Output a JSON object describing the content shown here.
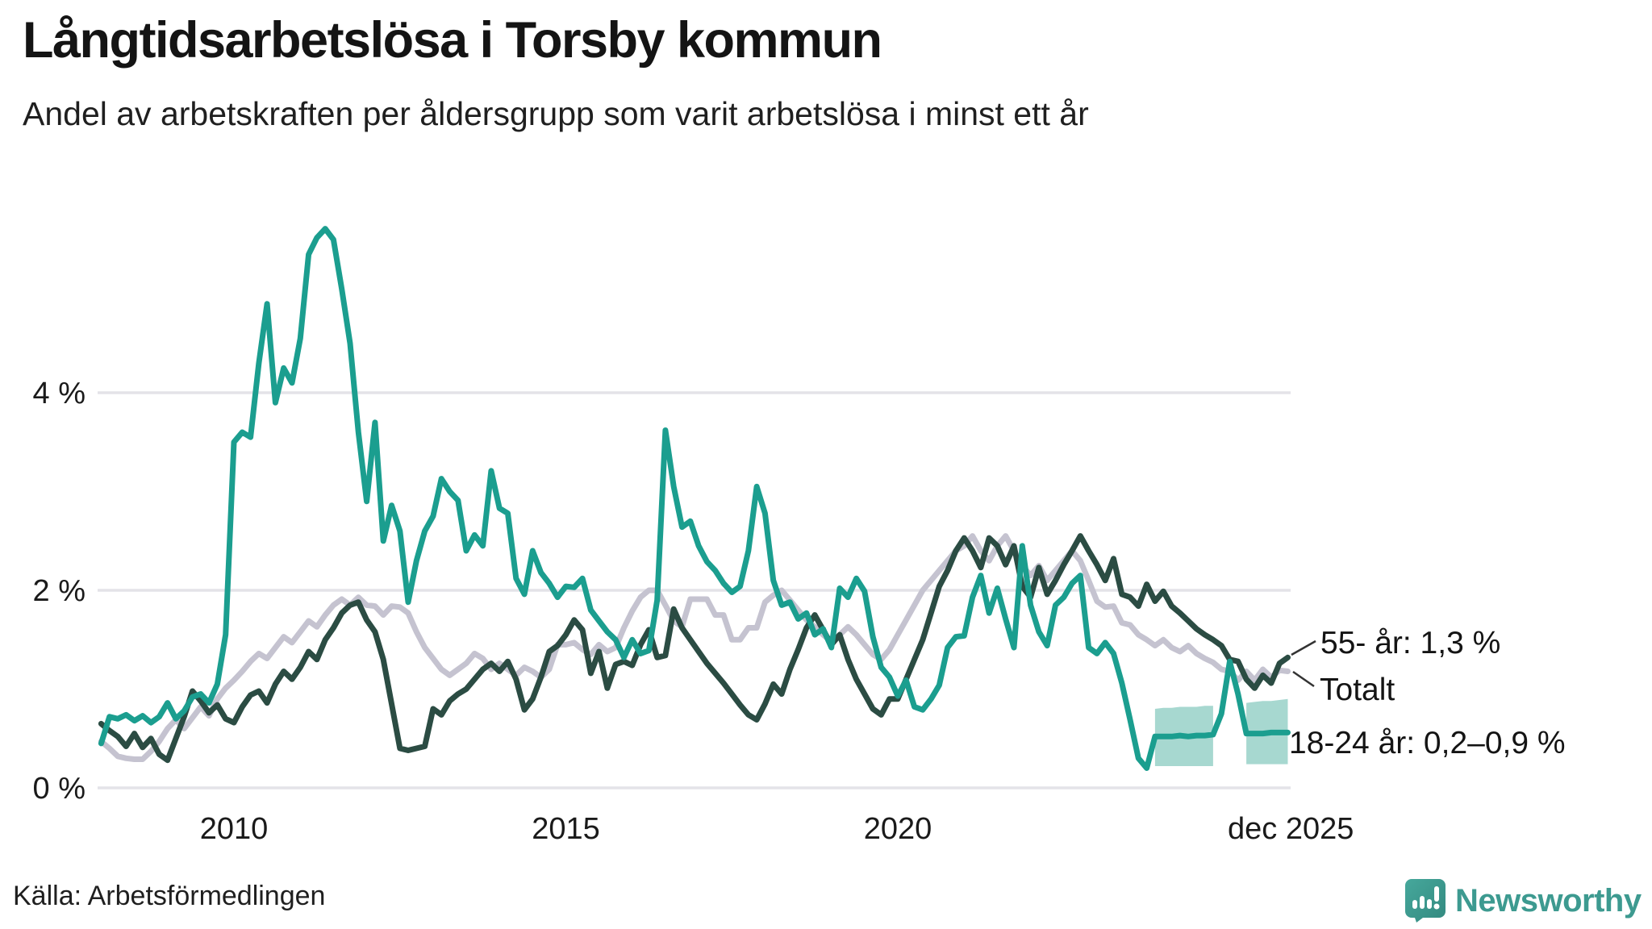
{
  "header": {
    "title": "Långtidsarbetslösa i Torsby kommun",
    "subtitle": "Andel av arbetskraften per åldersgrupp som varit arbetslösa i minst ett år"
  },
  "footer": {
    "source": "Källa: Arbetsförmedlingen",
    "brand": "Newsworthy"
  },
  "colors": {
    "youth_line": "#1b9e8f",
    "senior_line": "#2b4c43",
    "total_line": "#c5c3d0",
    "uncertainty_band": "#a7d8d0",
    "gridline": "#e4e3e8",
    "text": "#1a1a1a",
    "connector": "#333333",
    "brand_teal": "#3d9a90"
  },
  "chart_data": {
    "type": "line",
    "title": "Långtidsarbetslösa i Torsby kommun",
    "subtitle": "Andel av arbetskraften per åldersgrupp som varit arbetslösa i minst ett år",
    "xlabel": "",
    "ylabel": "",
    "x_start": 2008.0,
    "x_step": 0.125,
    "x_end": 2025.875,
    "ylim": [
      0,
      5.9
    ],
    "grid": "horizontal",
    "y_ticks": [
      {
        "label": "0 %",
        "value": 0
      },
      {
        "label": "2 %",
        "value": 2
      },
      {
        "label": "4 %",
        "value": 4
      }
    ],
    "x_ticks": [
      {
        "label": "2010",
        "year": 2010
      },
      {
        "label": "2015",
        "year": 2015
      },
      {
        "label": "2020",
        "year": 2020
      },
      {
        "label": "dec 2025",
        "year": 2025.92
      }
    ],
    "series": [
      {
        "name": "Totalt",
        "color": "#c5c3d0",
        "values": [
          0.47,
          0.4,
          0.32,
          0.3,
          0.29,
          0.29,
          0.37,
          0.47,
          0.6,
          0.69,
          0.6,
          0.71,
          0.82,
          0.73,
          0.9,
          1.01,
          1.09,
          1.18,
          1.28,
          1.36,
          1.31,
          1.42,
          1.53,
          1.47,
          1.58,
          1.69,
          1.63,
          1.75,
          1.85,
          1.91,
          1.85,
          1.93,
          1.85,
          1.84,
          1.75,
          1.84,
          1.83,
          1.77,
          1.58,
          1.42,
          1.31,
          1.2,
          1.14,
          1.2,
          1.26,
          1.36,
          1.31,
          1.2,
          1.26,
          1.2,
          1.14,
          1.22,
          1.18,
          1.12,
          1.2,
          1.45,
          1.45,
          1.47,
          1.4,
          1.35,
          1.45,
          1.38,
          1.42,
          1.62,
          1.79,
          1.93,
          2.0,
          2.0,
          1.85,
          1.69,
          1.63,
          1.91,
          1.91,
          1.91,
          1.75,
          1.75,
          1.5,
          1.5,
          1.62,
          1.62,
          1.88,
          1.95,
          2.0,
          1.9,
          1.8,
          1.7,
          1.63,
          1.55,
          1.48,
          1.55,
          1.63,
          1.55,
          1.45,
          1.35,
          1.3,
          1.4,
          1.55,
          1.7,
          1.85,
          2.0,
          2.1,
          2.2,
          2.3,
          2.4,
          2.45,
          2.55,
          2.4,
          2.3,
          2.45,
          2.55,
          2.4,
          2.25,
          2.15,
          2.25,
          2.1,
          2.2,
          2.3,
          2.4,
          2.3,
          2.1,
          1.89,
          1.83,
          1.84,
          1.67,
          1.65,
          1.55,
          1.5,
          1.44,
          1.5,
          1.42,
          1.38,
          1.44,
          1.36,
          1.31,
          1.27,
          1.2,
          1.18,
          1.09,
          1.18,
          1.09,
          1.2,
          1.12,
          1.19,
          1.18
        ]
      },
      {
        "name": "55- år",
        "color": "#2b4c43",
        "values": [
          0.65,
          0.58,
          0.52,
          0.42,
          0.55,
          0.41,
          0.5,
          0.34,
          0.28,
          0.5,
          0.72,
          0.98,
          0.88,
          0.76,
          0.84,
          0.7,
          0.66,
          0.82,
          0.94,
          0.98,
          0.86,
          1.05,
          1.18,
          1.1,
          1.22,
          1.38,
          1.3,
          1.5,
          1.62,
          1.77,
          1.85,
          1.88,
          1.7,
          1.58,
          1.3,
          0.85,
          0.4,
          0.38,
          0.4,
          0.42,
          0.8,
          0.74,
          0.88,
          0.95,
          1.0,
          1.1,
          1.2,
          1.26,
          1.18,
          1.28,
          1.1,
          0.79,
          0.9,
          1.12,
          1.38,
          1.44,
          1.55,
          1.7,
          1.6,
          1.16,
          1.38,
          1.01,
          1.25,
          1.28,
          1.24,
          1.45,
          1.6,
          1.32,
          1.34,
          1.81,
          1.62,
          1.5,
          1.38,
          1.26,
          1.16,
          1.06,
          0.95,
          0.84,
          0.74,
          0.69,
          0.85,
          1.05,
          0.95,
          1.2,
          1.4,
          1.62,
          1.75,
          1.6,
          1.45,
          1.55,
          1.3,
          1.1,
          0.95,
          0.8,
          0.74,
          0.9,
          0.9,
          1.1,
          1.3,
          1.5,
          1.77,
          2.04,
          2.2,
          2.4,
          2.53,
          2.4,
          2.23,
          2.53,
          2.45,
          2.26,
          2.45,
          2.04,
          1.93,
          2.23,
          1.96,
          2.1,
          2.26,
          2.4,
          2.55,
          2.4,
          2.26,
          2.1,
          2.32,
          1.96,
          1.93,
          1.84,
          2.06,
          1.89,
          1.99,
          1.84,
          1.77,
          1.69,
          1.61,
          1.55,
          1.5,
          1.44,
          1.3,
          1.28,
          1.1,
          1.01,
          1.14,
          1.06,
          1.26,
          1.32
        ]
      },
      {
        "name": "18-24 år",
        "color": "#1b9e8f",
        "values": [
          0.45,
          0.72,
          0.7,
          0.74,
          0.68,
          0.73,
          0.66,
          0.72,
          0.86,
          0.7,
          0.78,
          0.92,
          0.95,
          0.86,
          1.05,
          1.55,
          3.5,
          3.6,
          3.55,
          4.3,
          4.9,
          3.9,
          4.25,
          4.1,
          4.55,
          5.4,
          5.57,
          5.66,
          5.55,
          5.05,
          4.5,
          3.6,
          2.9,
          3.7,
          2.5,
          2.86,
          2.6,
          1.88,
          2.3,
          2.6,
          2.75,
          3.13,
          3.0,
          2.91,
          2.4,
          2.56,
          2.45,
          3.21,
          2.83,
          2.78,
          2.12,
          1.96,
          2.4,
          2.18,
          2.07,
          1.93,
          2.04,
          2.03,
          2.12,
          1.8,
          1.69,
          1.58,
          1.5,
          1.32,
          1.5,
          1.36,
          1.39,
          1.9,
          3.62,
          3.05,
          2.64,
          2.7,
          2.45,
          2.29,
          2.2,
          2.07,
          1.98,
          2.04,
          2.4,
          3.05,
          2.78,
          2.1,
          1.85,
          1.88,
          1.71,
          1.77,
          1.55,
          1.61,
          1.42,
          2.02,
          1.93,
          2.12,
          1.99,
          1.53,
          1.22,
          1.12,
          0.93,
          1.09,
          0.82,
          0.79,
          0.9,
          1.04,
          1.42,
          1.53,
          1.54,
          1.93,
          2.15,
          1.77,
          2.02,
          1.71,
          1.42,
          2.45,
          1.85,
          1.58,
          1.44,
          1.85,
          1.93,
          2.07,
          2.15,
          1.42,
          1.36,
          1.47,
          1.36,
          1.06,
          0.69,
          0.3,
          0.2,
          0.52,
          0.52,
          0.52,
          0.53,
          0.52,
          0.53,
          0.53,
          0.54,
          0.75,
          1.28,
          0.95,
          0.55,
          0.55,
          0.55,
          0.56,
          0.56,
          0.56
        ]
      }
    ],
    "uncertainty_band": {
      "series": "18-24 år",
      "color": "#a7d8d0",
      "range_label": "0,2–0,9 %",
      "low": [
        null,
        null,
        null,
        null,
        null,
        null,
        null,
        null,
        null,
        null,
        null,
        null,
        null,
        null,
        null,
        null,
        null,
        null,
        null,
        null,
        null,
        null,
        null,
        null,
        null,
        null,
        null,
        null,
        null,
        null,
        null,
        null,
        null,
        null,
        null,
        null,
        null,
        null,
        null,
        null,
        null,
        null,
        null,
        null,
        null,
        null,
        null,
        null,
        null,
        null,
        null,
        null,
        null,
        null,
        null,
        null,
        null,
        null,
        null,
        null,
        null,
        null,
        null,
        null,
        null,
        null,
        null,
        null,
        null,
        null,
        null,
        null,
        null,
        null,
        null,
        null,
        null,
        null,
        null,
        null,
        null,
        null,
        null,
        null,
        null,
        null,
        null,
        null,
        null,
        null,
        null,
        null,
        null,
        null,
        null,
        null,
        null,
        null,
        null,
        null,
        null,
        null,
        null,
        null,
        null,
        null,
        null,
        null,
        null,
        null,
        null,
        null,
        null,
        null,
        null,
        null,
        null,
        null,
        null,
        null,
        null,
        null,
        null,
        null,
        null,
        null,
        null,
        0.22,
        0.22,
        0.22,
        0.22,
        0.22,
        0.22,
        0.22,
        0.22,
        null,
        null,
        null,
        0.24,
        0.24,
        0.24,
        0.24,
        0.24,
        0.24
      ],
      "high": [
        null,
        null,
        null,
        null,
        null,
        null,
        null,
        null,
        null,
        null,
        null,
        null,
        null,
        null,
        null,
        null,
        null,
        null,
        null,
        null,
        null,
        null,
        null,
        null,
        null,
        null,
        null,
        null,
        null,
        null,
        null,
        null,
        null,
        null,
        null,
        null,
        null,
        null,
        null,
        null,
        null,
        null,
        null,
        null,
        null,
        null,
        null,
        null,
        null,
        null,
        null,
        null,
        null,
        null,
        null,
        null,
        null,
        null,
        null,
        null,
        null,
        null,
        null,
        null,
        null,
        null,
        null,
        null,
        null,
        null,
        null,
        null,
        null,
        null,
        null,
        null,
        null,
        null,
        null,
        null,
        null,
        null,
        null,
        null,
        null,
        null,
        null,
        null,
        null,
        null,
        null,
        null,
        null,
        null,
        null,
        null,
        null,
        null,
        null,
        null,
        null,
        null,
        null,
        null,
        null,
        null,
        null,
        null,
        null,
        null,
        null,
        null,
        null,
        null,
        null,
        null,
        null,
        null,
        null,
        null,
        null,
        null,
        null,
        null,
        null,
        null,
        null,
        0.8,
        0.81,
        0.81,
        0.82,
        0.82,
        0.82,
        0.83,
        0.83,
        null,
        null,
        null,
        0.86,
        0.87,
        0.88,
        0.88,
        0.89,
        0.9
      ]
    },
    "annotations": [
      {
        "label": "55- år: 1,3 %",
        "series": "55- år",
        "end_value": "1,3 %"
      },
      {
        "label": "Totalt",
        "series": "Totalt"
      },
      {
        "label": "18-24 år: 0,2–0,9 %",
        "series": "18-24 år",
        "end_value": "0,2–0,9 %"
      }
    ],
    "legend_position": "right-of-line-ends"
  }
}
